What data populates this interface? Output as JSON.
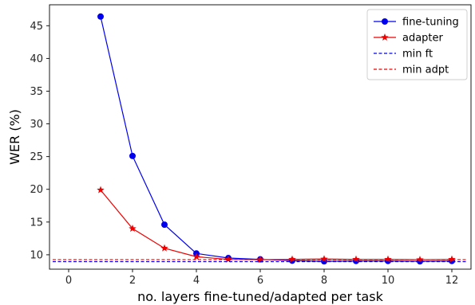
{
  "chart_data": {
    "type": "line",
    "title": "",
    "xlabel": "no. layers fine-tuned/adapted per task",
    "ylabel": "WER (%)",
    "xlim": [
      -0.6,
      12.6
    ],
    "ylim": [
      7.8,
      48.2
    ],
    "xticks": [
      0,
      2,
      4,
      6,
      8,
      10,
      12
    ],
    "yticks": [
      10,
      15,
      20,
      25,
      30,
      35,
      40,
      45
    ],
    "grid": false,
    "legend_position": "top-right",
    "series": [
      {
        "name": "fine-tuning",
        "color": "#0000ee",
        "marker": "circle",
        "style": "solid",
        "x": [
          1,
          2,
          3,
          4,
          5,
          6,
          7,
          8,
          9,
          10,
          11,
          12
        ],
        "y": [
          46.4,
          25.1,
          14.6,
          10.2,
          9.5,
          9.3,
          9.1,
          9.0,
          9.05,
          9.05,
          9.0,
          9.05
        ]
      },
      {
        "name": "adapter",
        "color": "#ee0000",
        "marker": "star",
        "style": "solid",
        "x": [
          1,
          2,
          3,
          4,
          5,
          6,
          7,
          8,
          9,
          10,
          11,
          12
        ],
        "y": [
          19.9,
          14.0,
          11.0,
          9.7,
          9.3,
          9.25,
          9.3,
          9.35,
          9.3,
          9.3,
          9.25,
          9.3
        ]
      },
      {
        "name": "min ft",
        "color": "#0000ee",
        "marker": "none",
        "style": "dashed",
        "y_const": 8.95
      },
      {
        "name": "min adpt",
        "color": "#ee0000",
        "marker": "none",
        "style": "dashed",
        "y_const": 9.25
      }
    ]
  }
}
